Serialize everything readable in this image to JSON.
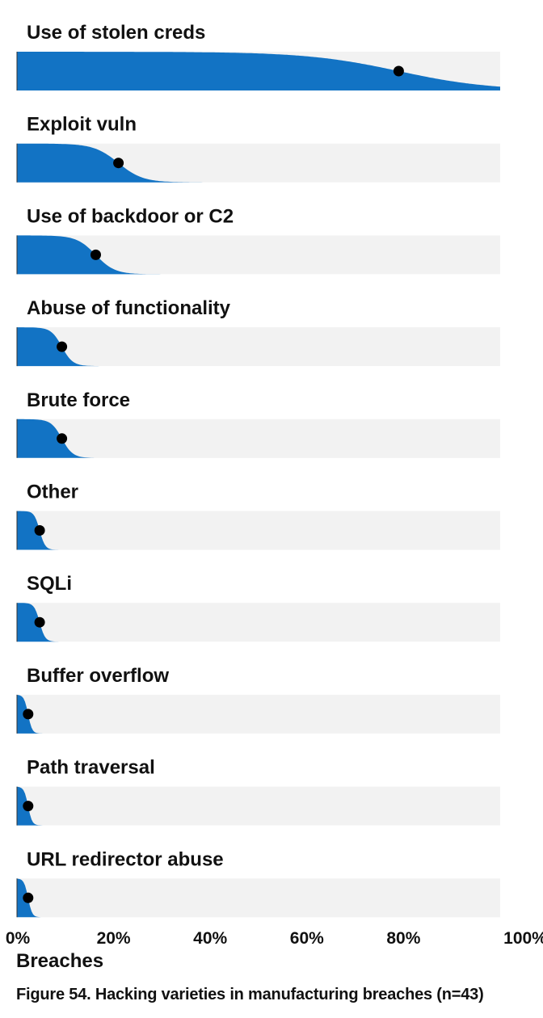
{
  "chart_data": {
    "type": "distribution",
    "xlabel": "Breaches",
    "xlim": [
      0,
      100
    ],
    "xticks": [
      "0%",
      "20%",
      "40%",
      "60%",
      "80%",
      "100%"
    ],
    "caption": "Figure 54. Hacking varieties in manufacturing breaches (n=43)",
    "series_color": "#1273c4",
    "track_color": "#f2f2f2",
    "point_color": "#000000",
    "categories": [
      {
        "label": "Use of stolen creds",
        "value": 79
      },
      {
        "label": "Exploit vuln",
        "value": 21
      },
      {
        "label": "Use of backdoor or C2",
        "value": 16.3
      },
      {
        "label": "Abuse of functionality",
        "value": 9.3
      },
      {
        "label": "Brute force",
        "value": 9.3
      },
      {
        "label": "Other",
        "value": 4.7
      },
      {
        "label": "SQLi",
        "value": 4.7
      },
      {
        "label": "Buffer overflow",
        "value": 2.3
      },
      {
        "label": "Path traversal",
        "value": 2.3
      },
      {
        "label": "URL redirector abuse",
        "value": 2.3
      }
    ]
  }
}
